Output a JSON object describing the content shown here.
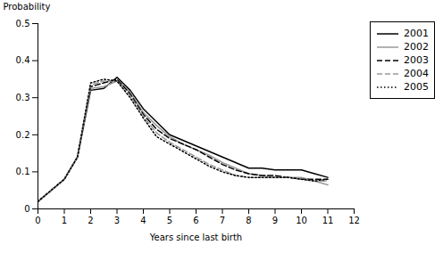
{
  "chart_data": {
    "type": "line",
    "x": [
      0,
      0.5,
      1.0,
      1.5,
      2.0,
      2.5,
      3.0,
      3.5,
      4.0,
      4.5,
      5.0,
      5.5,
      6.0,
      6.5,
      7.0,
      7.5,
      8.0,
      8.5,
      9.0,
      9.5,
      10.0,
      10.5,
      11.0
    ],
    "series": [
      {
        "name": "2001",
        "color": "#000000",
        "line_style": "solid",
        "values": [
          0.02,
          0.05,
          0.08,
          0.14,
          0.32,
          0.325,
          0.355,
          0.32,
          0.27,
          0.235,
          0.2,
          0.185,
          0.17,
          0.155,
          0.14,
          0.125,
          0.11,
          0.11,
          0.105,
          0.105,
          0.105,
          0.095,
          0.085
        ]
      },
      {
        "name": "2002",
        "color": "#999999",
        "line_style": "solid",
        "values": [
          0.02,
          0.05,
          0.08,
          0.14,
          0.325,
          0.33,
          0.345,
          0.315,
          0.26,
          0.225,
          0.195,
          0.175,
          0.16,
          0.145,
          0.125,
          0.11,
          0.095,
          0.09,
          0.085,
          0.085,
          0.085,
          0.075,
          0.065
        ]
      },
      {
        "name": "2003",
        "color": "#000000",
        "line_style": "dashed",
        "values": [
          0.02,
          0.05,
          0.08,
          0.14,
          0.33,
          0.34,
          0.35,
          0.31,
          0.255,
          0.215,
          0.19,
          0.175,
          0.16,
          0.14,
          0.12,
          0.105,
          0.095,
          0.09,
          0.09,
          0.085,
          0.08,
          0.08,
          0.08
        ]
      },
      {
        "name": "2004",
        "color": "#999999",
        "line_style": "dashed",
        "values": [
          0.02,
          0.05,
          0.08,
          0.14,
          0.335,
          0.345,
          0.345,
          0.305,
          0.25,
          0.205,
          0.18,
          0.16,
          0.14,
          0.12,
          0.105,
          0.09,
          0.085,
          0.085,
          0.085,
          0.085,
          0.08,
          0.075,
          0.075
        ]
      },
      {
        "name": "2005",
        "color": "#000000",
        "line_style": "dotted",
        "values": [
          0.02,
          0.05,
          0.08,
          0.14,
          0.34,
          0.35,
          0.345,
          0.3,
          0.245,
          0.195,
          0.175,
          0.155,
          0.135,
          0.115,
          0.1,
          0.09,
          0.085,
          0.085,
          0.085,
          0.085,
          0.08,
          0.075,
          0.08
        ]
      }
    ],
    "xlabel": "Years since last birth",
    "ylabel": "Probability",
    "xlim": [
      0,
      12
    ],
    "ylim": [
      0,
      0.5
    ],
    "xticks": [
      0,
      1,
      2,
      3,
      4,
      5,
      6,
      7,
      8,
      9,
      10,
      11,
      12
    ],
    "yticks": [
      0,
      0.1,
      0.2,
      0.3,
      0.4,
      0.5
    ],
    "grid": false,
    "legend": "upper right"
  }
}
